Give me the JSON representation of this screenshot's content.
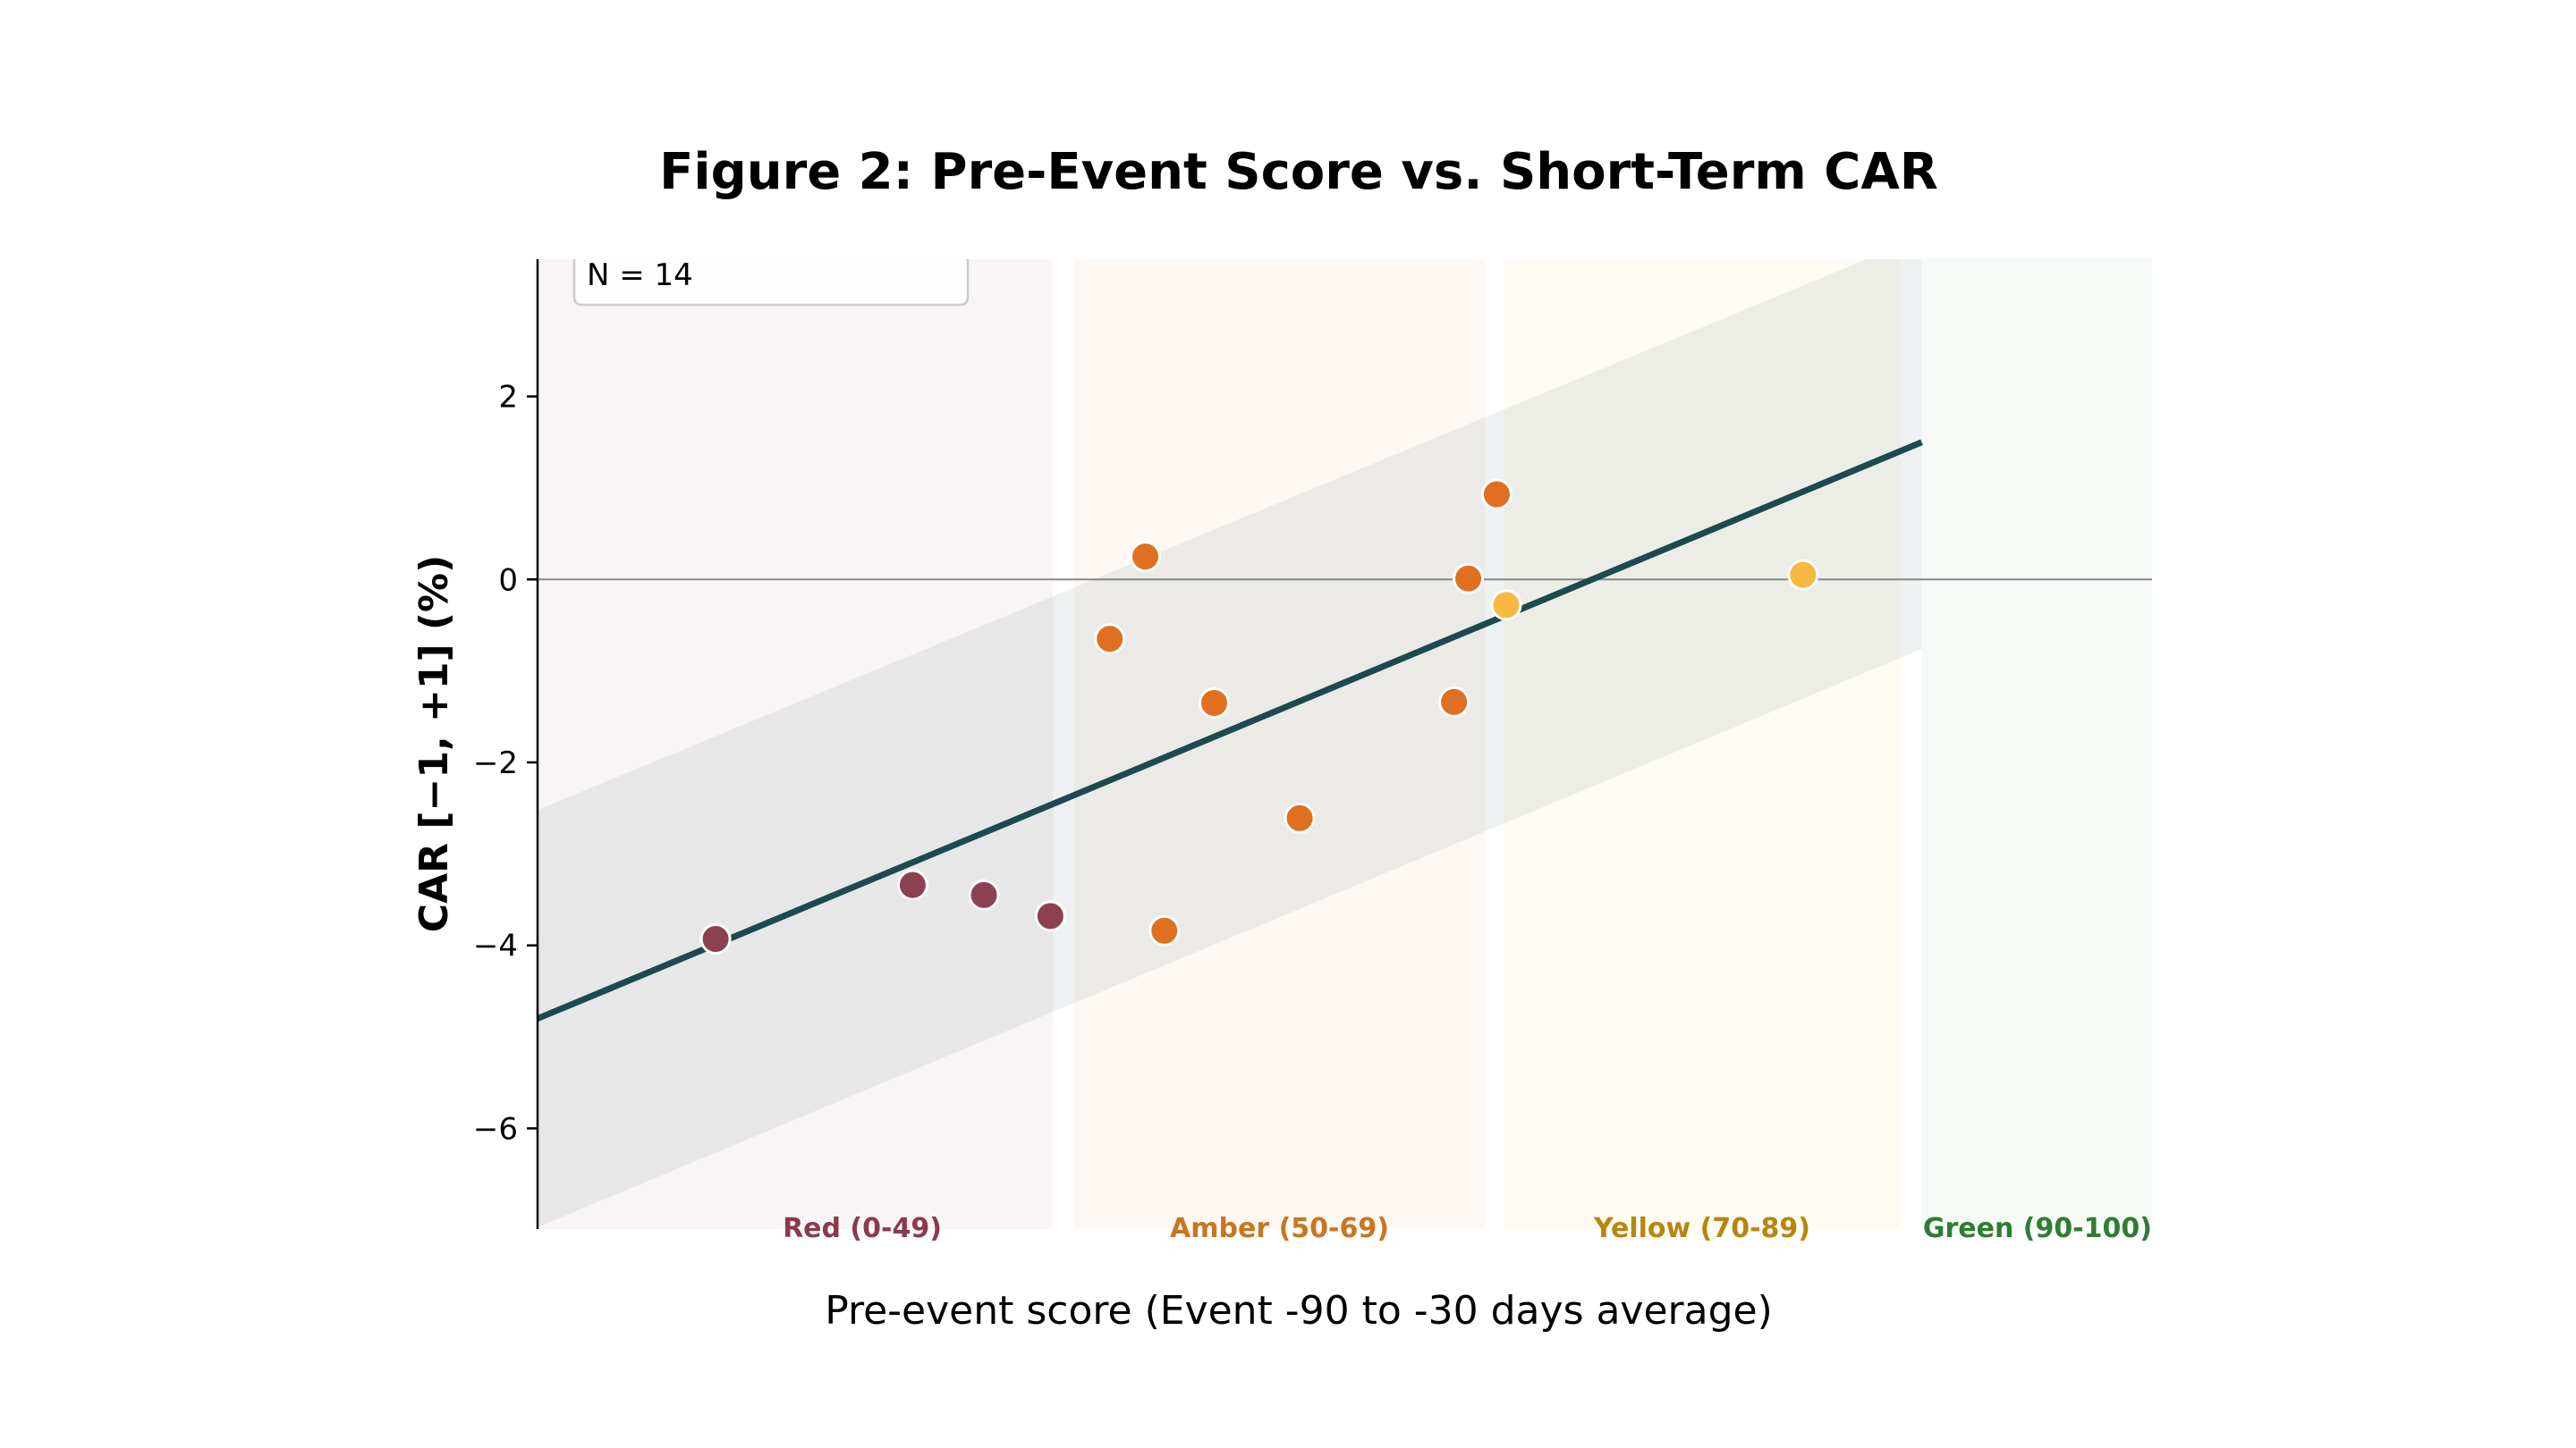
{
  "chart_data": {
    "type": "scatter",
    "title": "Figure 2: Pre-Event Score vs. Short-Term CAR",
    "xlabel": "Pre-event score (Event -90 to -30 days average)",
    "ylabel": "CAR [−1, +1] (%)",
    "xlim": [
      32,
      100
    ],
    "ylim": [
      -7.1,
      3.5
    ],
    "yticks": [
      2,
      0,
      -2,
      -4,
      -6
    ],
    "ytick_labels": [
      "2",
      "0",
      "−2",
      "−4",
      "−6"
    ],
    "grid": false,
    "zero_line": true,
    "zones": [
      {
        "label": "Red (0-49)",
        "from": 32,
        "to": 53.7,
        "fill": "#8b3a4d",
        "text_color": "#8b3a4d"
      },
      {
        "label": "Amber (50-69)",
        "from": 54.6,
        "to": 71.9,
        "fill": "#e07b24",
        "text_color": "#c8761f"
      },
      {
        "label": "Yellow (70-89)",
        "from": 72.7,
        "to": 89.4,
        "fill": "#e8b840",
        "text_color": "#b8860b"
      },
      {
        "label": "Green (90-100)",
        "from": 90.3,
        "to": 100,
        "fill": "#4a9a5a",
        "text_color": "#2e7d32"
      }
    ],
    "fit_line": {
      "x": [
        32,
        90.3
      ],
      "y": [
        -4.8,
        1.5
      ],
      "color": "#1d4a4f"
    },
    "confidence_band": {
      "x": [
        32,
        90.3
      ],
      "y_upper": [
        -2.52,
        3.75
      ],
      "y_lower": [
        -7.08,
        -0.76
      ]
    },
    "series": [
      {
        "category": "Red",
        "color": "#8b4150",
        "points": [
          [
            39.5,
            -3.93
          ],
          [
            47.8,
            -3.34
          ],
          [
            50.8,
            -3.45
          ],
          [
            53.6,
            -3.68
          ]
        ]
      },
      {
        "category": "Amber",
        "color": "#e07020",
        "points": [
          [
            56.1,
            -0.65
          ],
          [
            57.6,
            0.25
          ],
          [
            58.4,
            -3.84
          ],
          [
            60.5,
            -1.35
          ],
          [
            64.1,
            -2.61
          ],
          [
            70.6,
            -1.34
          ],
          [
            71.2,
            0.01
          ],
          [
            72.4,
            0.93
          ]
        ]
      },
      {
        "category": "Yellow",
        "color": "#f6b840",
        "points": [
          [
            72.8,
            -0.28
          ],
          [
            85.3,
            0.05
          ]
        ]
      }
    ],
    "legend": {
      "placement": "top-left",
      "text": "N = 14"
    }
  }
}
